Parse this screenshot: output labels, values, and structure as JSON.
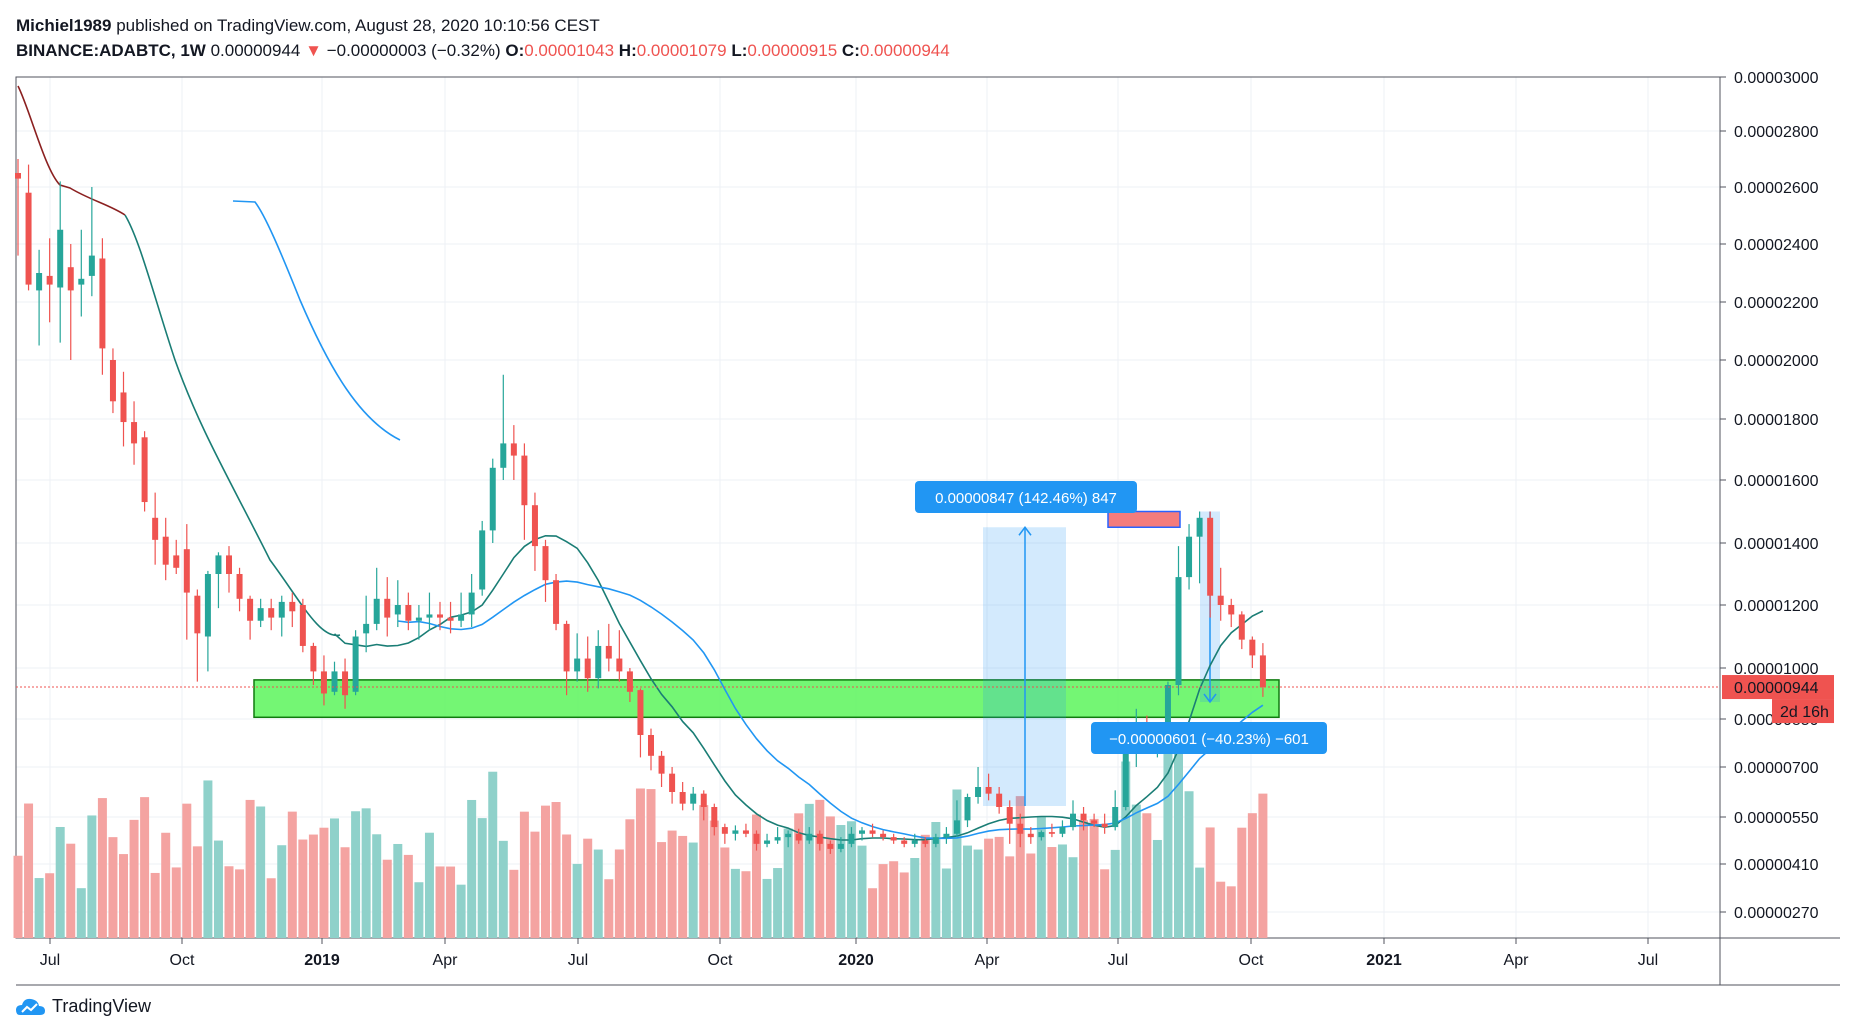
{
  "header": {
    "author": "Michiel1989",
    "published": "published on TradingView.com, August 28, 2020 10:10:56 CEST",
    "symbol": "BINANCE:ADABTC, 1W",
    "last": "0.00000944",
    "change": "−0.00000003 (−0.32%)",
    "o_label": "O:",
    "o": "0.00001043",
    "h_label": "H:",
    "h": "0.00001079",
    "l_label": "L:",
    "l": "0.00000915",
    "c_label": "C:",
    "c": "0.00000944"
  },
  "footer": {
    "brand": "TradingView"
  },
  "colors": {
    "up": "#26a69a",
    "down": "#ef5350",
    "vol_up": "#8fd1ca",
    "vol_down": "#f4a3a1",
    "ma_fast": "#1a7d75",
    "ma_slow": "#2196f3",
    "ma_old": "#8b2020",
    "zone": "#5cf55c",
    "measure": "#2196f3"
  },
  "chart_data": {
    "type": "candlestick",
    "x_ticks": [
      "Jul",
      "Oct",
      "2019",
      "Apr",
      "Jul",
      "Oct",
      "2020",
      "Apr",
      "Jul",
      "Oct",
      "2021",
      "Apr",
      "Jul"
    ],
    "x_ticks_bold": [
      "2019",
      "2020",
      "2021"
    ],
    "y_ticks": [
      "0.00003000",
      "0.00002800",
      "0.00002600",
      "0.00002400",
      "0.00002200",
      "0.00002000",
      "0.00001800",
      "0.00001600",
      "0.00001400",
      "0.00001200",
      "0.00001000",
      "0.00000850",
      "0.00000700",
      "0.00000550",
      "0.00000410",
      "0.00000270"
    ],
    "y_scale": "log",
    "price_marker": "0.00000944",
    "countdown": "2d 16h",
    "candles": [
      [
        2650,
        2630,
        2700,
        2360
      ],
      [
        2580,
        2260,
        2680,
        2240
      ],
      [
        2240,
        2300,
        2380,
        2050
      ],
      [
        2290,
        2260,
        2420,
        2130
      ],
      [
        2250,
        2450,
        2620,
        2060
      ],
      [
        2320,
        2240,
        2400,
        2000
      ],
      [
        2260,
        2280,
        2450,
        2150
      ],
      [
        2290,
        2360,
        2600,
        2220
      ],
      [
        2350,
        2040,
        2420,
        1950
      ],
      [
        2000,
        1860,
        2040,
        1820
      ],
      [
        1890,
        1790,
        1960,
        1710
      ],
      [
        1790,
        1720,
        1860,
        1650
      ],
      [
        1740,
        1530,
        1760,
        1500
      ],
      [
        1480,
        1410,
        1560,
        1330
      ],
      [
        1420,
        1330,
        1480,
        1280
      ],
      [
        1360,
        1320,
        1410,
        1300
      ],
      [
        1380,
        1240,
        1460,
        1090
      ],
      [
        1230,
        1110,
        1250,
        960
      ],
      [
        1100,
        1300,
        1310,
        990
      ],
      [
        1300,
        1360,
        1370,
        1190
      ],
      [
        1360,
        1300,
        1390,
        1240
      ],
      [
        1300,
        1220,
        1320,
        1180
      ],
      [
        1220,
        1150,
        1230,
        1090
      ],
      [
        1150,
        1190,
        1220,
        1130
      ],
      [
        1190,
        1160,
        1220,
        1120
      ],
      [
        1160,
        1210,
        1230,
        1100
      ],
      [
        1210,
        1180,
        1240,
        1130
      ],
      [
        1200,
        1070,
        1220,
        1050
      ],
      [
        1070,
        990,
        1080,
        950
      ],
      [
        990,
        925,
        1040,
        890
      ],
      [
        930,
        990,
        1020,
        920
      ],
      [
        990,
        920,
        1030,
        880
      ],
      [
        930,
        1100,
        1120,
        920
      ],
      [
        1110,
        1140,
        1230,
        1050
      ],
      [
        1140,
        1220,
        1320,
        1120
      ],
      [
        1220,
        1160,
        1290,
        1100
      ],
      [
        1170,
        1200,
        1280,
        1130
      ],
      [
        1200,
        1150,
        1240,
        1120
      ],
      [
        1150,
        1160,
        1200,
        1090
      ],
      [
        1160,
        1170,
        1240,
        1120
      ],
      [
        1170,
        1160,
        1210,
        1120
      ],
      [
        1160,
        1150,
        1210,
        1110
      ],
      [
        1150,
        1170,
        1240,
        1130
      ],
      [
        1170,
        1240,
        1300,
        1130
      ],
      [
        1250,
        1440,
        1470,
        1230
      ],
      [
        1440,
        1640,
        1670,
        1400
      ],
      [
        1640,
        1720,
        1950,
        1600
      ],
      [
        1720,
        1680,
        1780,
        1600
      ],
      [
        1680,
        1520,
        1720,
        1410
      ],
      [
        1520,
        1390,
        1560,
        1310
      ],
      [
        1390,
        1280,
        1410,
        1210
      ],
      [
        1280,
        1140,
        1300,
        1120
      ],
      [
        1140,
        990,
        1150,
        920
      ],
      [
        990,
        1030,
        1110,
        960
      ],
      [
        1030,
        970,
        1100,
        930
      ],
      [
        970,
        1070,
        1120,
        940
      ],
      [
        1070,
        1030,
        1140,
        990
      ],
      [
        1030,
        990,
        1120,
        960
      ],
      [
        990,
        930,
        1000,
        900
      ],
      [
        935,
        800,
        940,
        730
      ],
      [
        800,
        735,
        820,
        690
      ],
      [
        735,
        680,
        750,
        640
      ],
      [
        680,
        625,
        700,
        590
      ],
      [
        625,
        590,
        655,
        570
      ],
      [
        590,
        620,
        640,
        570
      ],
      [
        620,
        580,
        630,
        540
      ],
      [
        580,
        520,
        590,
        495
      ],
      [
        520,
        500,
        530,
        470
      ],
      [
        500,
        510,
        525,
        480
      ],
      [
        510,
        500,
        530,
        490
      ],
      [
        500,
        470,
        510,
        450
      ],
      [
        470,
        480,
        500,
        460
      ],
      [
        480,
        490,
        520,
        470
      ],
      [
        490,
        500,
        510,
        460
      ],
      [
        500,
        480,
        515,
        470
      ],
      [
        480,
        500,
        520,
        470
      ],
      [
        500,
        470,
        510,
        450
      ],
      [
        470,
        455,
        480,
        440
      ],
      [
        455,
        470,
        490,
        445
      ],
      [
        470,
        500,
        520,
        460
      ],
      [
        500,
        510,
        520,
        480
      ],
      [
        510,
        500,
        530,
        490
      ],
      [
        500,
        490,
        510,
        480
      ],
      [
        490,
        480,
        500,
        470
      ],
      [
        480,
        470,
        490,
        460
      ],
      [
        470,
        480,
        500,
        460
      ],
      [
        480,
        470,
        490,
        460
      ],
      [
        470,
        490,
        500,
        460
      ],
      [
        490,
        500,
        520,
        470
      ],
      [
        500,
        540,
        600,
        490
      ],
      [
        540,
        610,
        620,
        520
      ],
      [
        610,
        640,
        700,
        590
      ],
      [
        640,
        620,
        680,
        600
      ],
      [
        620,
        580,
        640,
        560
      ],
      [
        580,
        530,
        600,
        470
      ],
      [
        530,
        500,
        560,
        460
      ],
      [
        500,
        490,
        520,
        470
      ],
      [
        490,
        505,
        510,
        480
      ],
      [
        505,
        500,
        530,
        490
      ],
      [
        500,
        520,
        540,
        490
      ],
      [
        520,
        560,
        600,
        510
      ],
      [
        560,
        540,
        580,
        510
      ],
      [
        540,
        530,
        560,
        520
      ],
      [
        530,
        520,
        560,
        500
      ],
      [
        520,
        580,
        630,
        510
      ],
      [
        580,
        760,
        800,
        570
      ],
      [
        760,
        830,
        880,
        700
      ],
      [
        830,
        770,
        860,
        750
      ],
      [
        770,
        780,
        820,
        730
      ],
      [
        780,
        950,
        960,
        770
      ],
      [
        950,
        1290,
        1390,
        920
      ],
      [
        1290,
        1420,
        1460,
        1250
      ],
      [
        1420,
        1480,
        1500,
        1270
      ],
      [
        1480,
        1230,
        1500,
        1160
      ],
      [
        1230,
        1200,
        1320,
        1150
      ],
      [
        1200,
        1170,
        1220,
        1130
      ],
      [
        1170,
        1090,
        1180,
        1060
      ],
      [
        1090,
        1040,
        1100,
        1000
      ],
      [
        1040,
        944,
        1079,
        915
      ]
    ],
    "ma_fast_name": "",
    "zone_support": [
      855,
      965
    ],
    "zone_resistance": [
      1450,
      1500
    ],
    "measure_up": {
      "label": "0.00000847 (142.46%) 847"
    },
    "measure_down": {
      "label": "−0.00000601 (−40.23%) −601"
    }
  }
}
